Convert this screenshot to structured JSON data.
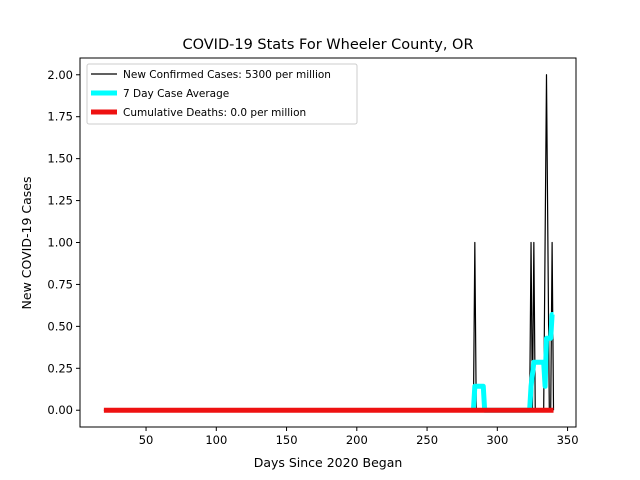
{
  "chart_data": {
    "type": "line",
    "title": "COVID-19 Stats For Wheeler County, OR",
    "xlabel": "Days Since 2020 Began",
    "ylabel": "New COVID-19 Cases",
    "xlim": [
      3,
      356
    ],
    "ylim": [
      -0.1,
      2.1
    ],
    "xticks": [
      50,
      100,
      150,
      200,
      250,
      300,
      350
    ],
    "xtick_labels": [
      "50",
      "100",
      "150",
      "200",
      "250",
      "300",
      "350"
    ],
    "yticks": [
      0,
      0.25,
      0.5,
      0.75,
      1.0,
      1.25,
      1.5,
      1.75,
      2.0
    ],
    "ytick_labels": [
      "0.00",
      "0.25",
      "0.50",
      "0.75",
      "1.00",
      "1.25",
      "1.50",
      "1.75",
      "2.00"
    ],
    "grid": false,
    "legend_position": "top-left",
    "series": [
      {
        "name": "New Confirmed Cases: 5300 per million",
        "color": "#000000",
        "x": [
          20,
          283,
          284,
          285,
          323,
          324,
          325,
          326,
          327,
          328,
          333,
          334,
          335,
          336,
          337,
          338,
          339,
          340
        ],
        "y": [
          0,
          0,
          1,
          0,
          0,
          1,
          0,
          1,
          0,
          0,
          0,
          1,
          2,
          1,
          0,
          0,
          1,
          0
        ]
      },
      {
        "name": "7 Day Case Average",
        "color": "#00ffff",
        "x": [
          283,
          284,
          290,
          291,
          323,
          324,
          326,
          327,
          333,
          334,
          335,
          336,
          338,
          339,
          340
        ],
        "y": [
          0,
          0.143,
          0.143,
          0,
          0,
          0.143,
          0.286,
          0.286,
          0.286,
          0.143,
          0.429,
          0.429,
          0.429,
          0.571,
          0.571
        ]
      },
      {
        "name": "Cumulative Deaths: 0.0 per million",
        "color": "#ee1111",
        "x": [
          20,
          340
        ],
        "y": [
          0,
          0
        ]
      }
    ]
  }
}
